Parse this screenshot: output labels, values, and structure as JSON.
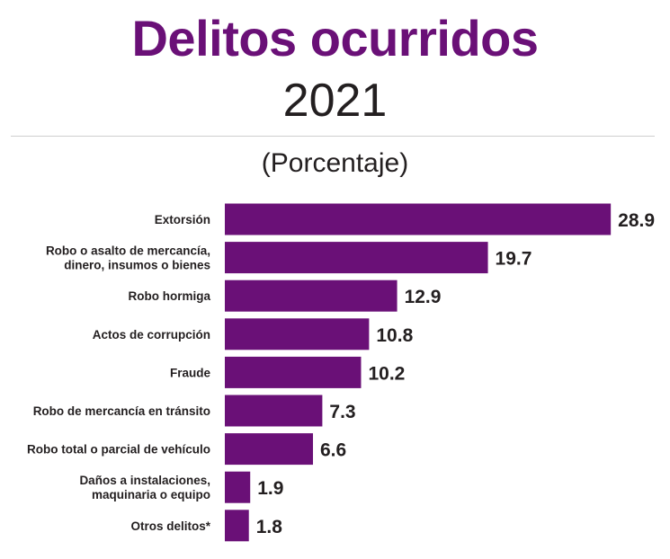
{
  "title": "Delitos ocurridos",
  "year": "2021",
  "subtitle": "(Porcentaje)",
  "colors": {
    "bar": "#6a1077",
    "title": "#6a1077",
    "text": "#231f20"
  },
  "chart_data": {
    "type": "bar",
    "orientation": "horizontal",
    "categories": [
      [
        "Extorsión"
      ],
      [
        "Robo o asalto de mercancía,",
        "dinero, insumos o bienes"
      ],
      [
        "Robo hormiga"
      ],
      [
        "Actos de corrupción"
      ],
      [
        "Fraude"
      ],
      [
        "Robo de mercancía en tránsito"
      ],
      [
        "Robo total o parcial de vehículo"
      ],
      [
        "Daños a instalaciones,",
        "maquinaria o equipo"
      ],
      [
        "Otros delitos*"
      ]
    ],
    "values": [
      28.9,
      19.7,
      12.9,
      10.8,
      10.2,
      7.3,
      6.6,
      1.9,
      1.8
    ],
    "value_labels": [
      "28.9",
      "19.7",
      "12.9",
      "10.8",
      "10.2",
      "7.3",
      "6.6",
      "1.9",
      "1.8"
    ],
    "grid": false,
    "legend": "none"
  }
}
